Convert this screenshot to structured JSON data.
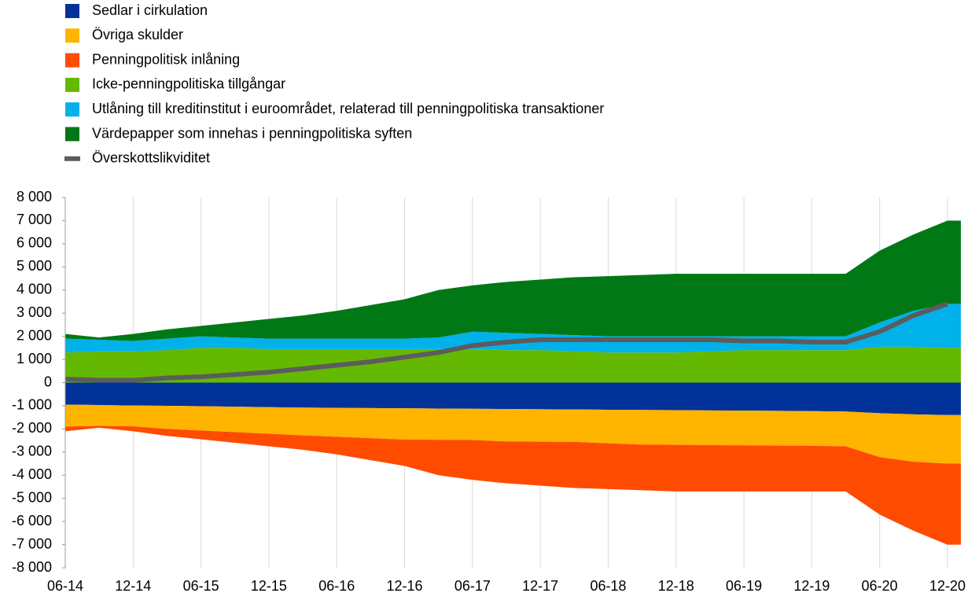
{
  "chart_data": {
    "type": "stacked-area",
    "categories": [
      "06-14",
      null,
      "12-14",
      null,
      "06-15",
      null,
      "12-15",
      null,
      "06-16",
      null,
      "12-16",
      null,
      "06-17",
      null,
      "12-17",
      null,
      "06-18",
      null,
      "12-18",
      null,
      "06-19",
      null,
      "12-19",
      null,
      "06-20",
      null,
      "12-20"
    ],
    "series": [
      {
        "name": "Sedlar i cirkulation",
        "color": "#003299",
        "values": [
          -950,
          -970,
          -990,
          -1000,
          -1020,
          -1040,
          -1060,
          -1080,
          -1090,
          -1100,
          -1110,
          -1120,
          -1130,
          -1140,
          -1150,
          -1160,
          -1170,
          -1180,
          -1190,
          -1200,
          -1210,
          -1220,
          -1230,
          -1250,
          -1320,
          -1370,
          -1400
        ]
      },
      {
        "name": "Övriga skulder",
        "color": "#ffb400",
        "values": [
          -950,
          -900,
          -900,
          -1000,
          -1050,
          -1100,
          -1150,
          -1200,
          -1250,
          -1300,
          -1350,
          -1350,
          -1350,
          -1400,
          -1400,
          -1400,
          -1450,
          -1500,
          -1500,
          -1500,
          -1500,
          -1500,
          -1500,
          -1500,
          -1900,
          -2050,
          -2100
        ]
      },
      {
        "name": "Penningpolitisk inlåning",
        "color": "#ff4b00",
        "values": [
          -200,
          -80,
          -210,
          -300,
          -380,
          -460,
          -540,
          -620,
          -760,
          -950,
          -1140,
          -1530,
          -1720,
          -1810,
          -1900,
          -1990,
          -1980,
          -1970,
          -2010,
          -2000,
          -1990,
          -1980,
          -1970,
          -1950,
          -2480,
          -2980,
          -3500
        ]
      },
      {
        "name": "Icke-penningpolitiska tillgångar",
        "color": "#65b800",
        "values": [
          1300,
          1350,
          1350,
          1400,
          1500,
          1500,
          1450,
          1450,
          1450,
          1450,
          1450,
          1450,
          1450,
          1400,
          1400,
          1350,
          1300,
          1300,
          1300,
          1350,
          1400,
          1400,
          1400,
          1400,
          1550,
          1550,
          1500
        ]
      },
      {
        "name": "Utlåning till kreditinstitut i euroområdet, relaterad till penningpolitiska transaktioner",
        "color": "#00b1ea",
        "values": [
          600,
          500,
          450,
          500,
          500,
          450,
          450,
          450,
          450,
          450,
          450,
          500,
          750,
          750,
          700,
          700,
          700,
          700,
          700,
          650,
          600,
          600,
          600,
          600,
          1050,
          1550,
          1900
        ]
      },
      {
        "name": "Värdepapper som innehas i penningpolitiska syften",
        "color": "#007816",
        "values": [
          200,
          100,
          300,
          400,
          450,
          650,
          850,
          1000,
          1200,
          1450,
          1700,
          2050,
          2000,
          2200,
          2350,
          2500,
          2600,
          2650,
          2700,
          2700,
          2700,
          2700,
          2700,
          2700,
          3100,
          3300,
          3600
        ]
      }
    ],
    "line": {
      "name": "Överskottslikviditet",
      "color": "#5c5c5c",
      "values": [
        150,
        100,
        100,
        200,
        250,
        350,
        450,
        600,
        750,
        900,
        1100,
        1300,
        1600,
        1750,
        1850,
        1850,
        1850,
        1850,
        1850,
        1850,
        1800,
        1800,
        1750,
        1750,
        2200,
        2900,
        3400
      ]
    },
    "ylim": [
      -8000,
      8000
    ],
    "yticks": [
      {
        "value": -8000,
        "label": "-8 000"
      },
      {
        "value": -7000,
        "label": "-7 000"
      },
      {
        "value": -6000,
        "label": "-6 000"
      },
      {
        "value": -5000,
        "label": "-5 000"
      },
      {
        "value": -4000,
        "label": "-4 000"
      },
      {
        "value": -3000,
        "label": "-3 000"
      },
      {
        "value": -2000,
        "label": "-2 000"
      },
      {
        "value": -1000,
        "label": "-1 000"
      },
      0,
      {
        "value": 1000,
        "label": "1 000"
      },
      {
        "value": 2000,
        "label": "2 000"
      },
      {
        "value": 3000,
        "label": "3 000"
      },
      {
        "value": 4000,
        "label": "4 000"
      },
      {
        "value": 5000,
        "label": "5 000"
      },
      {
        "value": 6000,
        "label": "6 000"
      },
      {
        "value": 7000,
        "label": "7 000"
      },
      {
        "value": 8000,
        "label": "8 000"
      }
    ],
    "grid": true
  }
}
